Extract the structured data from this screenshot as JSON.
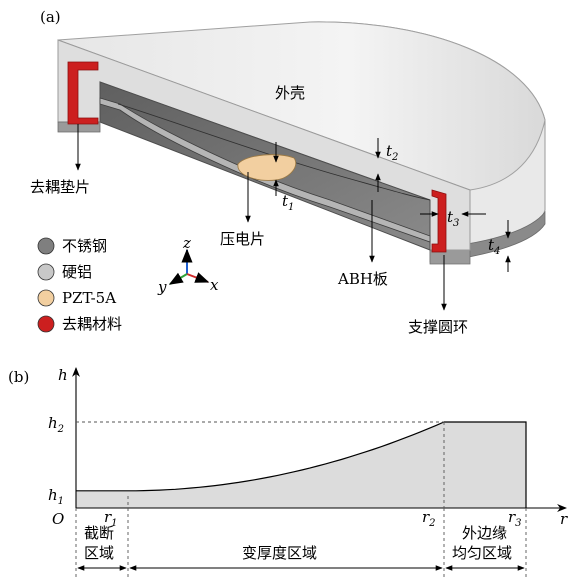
{
  "panel_a": {
    "label": "(a)",
    "shell_label": "外壳",
    "decoupling_pad_label": "去耦垫片",
    "piezo_label": "压电片",
    "abh_plate_label": "ABH板",
    "support_ring_label": "支撑圆环",
    "dims": [
      {
        "sym": "t",
        "sub": "1"
      },
      {
        "sym": "t",
        "sub": "2"
      },
      {
        "sym": "t",
        "sub": "3"
      },
      {
        "sym": "t",
        "sub": "4"
      }
    ],
    "axes": {
      "z": "z",
      "y": "y",
      "x": "x"
    },
    "legend": [
      {
        "label": "不锈钢",
        "color": "#7f7f7f"
      },
      {
        "label": "硬铝",
        "color": "#c8c8c8"
      },
      {
        "label": "PZT-5A",
        "color": "#f2cfa0"
      },
      {
        "label": "去耦材料",
        "color": "#cc1f1f"
      }
    ]
  },
  "panel_b": {
    "label": "(b)",
    "y_axis": "h",
    "x_axis": "r",
    "origin": "O",
    "h_ticks": [
      {
        "sym": "h",
        "sub": "1",
        "value": 1
      },
      {
        "sym": "h",
        "sub": "2",
        "value": 5
      }
    ],
    "r_ticks": [
      {
        "sym": "r",
        "sub": "1"
      },
      {
        "sym": "r",
        "sub": "2"
      },
      {
        "sym": "r",
        "sub": "3"
      }
    ],
    "regions": [
      {
        "line1": "截断",
        "line2": "区域"
      },
      {
        "line1": "变厚度区域",
        "line2": ""
      },
      {
        "line1": "外边缘",
        "line2": "均匀区域"
      }
    ]
  }
}
